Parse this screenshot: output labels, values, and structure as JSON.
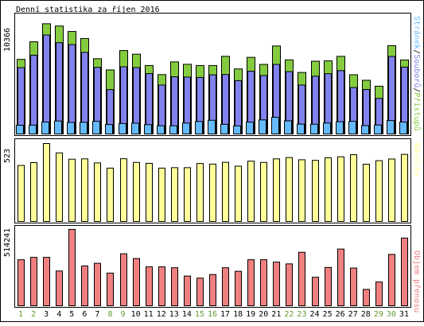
{
  "title": "Denní statistika za říjen 2016",
  "colors": {
    "frame": "#000000",
    "background": "#ffffff",
    "green": "#84cc3f",
    "blue": "#8282ee",
    "lightblue": "#66bbff",
    "yellow": "#ffff99",
    "red": "#f08080",
    "day_weekday": "#000000",
    "day_weekend": "#669933"
  },
  "chart_data": [
    {
      "type": "bar",
      "title": "Denní statistika za říjen 2016",
      "ylabel_max": "10366",
      "legend_right": [
        "Stránek",
        "/",
        "Souborů",
        "/",
        "Přístupů"
      ],
      "ylim": [
        0,
        10366
      ],
      "series": [
        {
          "name": "Přístupů",
          "color": "green",
          "values": [
            6570,
            8120,
            9710,
            9510,
            9030,
            8410,
            6630,
            5640,
            7350,
            7030,
            6030,
            5230,
            6350,
            6140,
            6030,
            6030,
            6840,
            5730,
            6750,
            6130,
            7750,
            6530,
            5420,
            6410,
            6440,
            6840,
            5220,
            4730,
            4210,
            7780,
            6520
          ]
        },
        {
          "name": "Souborů",
          "color": "blue",
          "values": [
            5840,
            6940,
            8720,
            8040,
            7870,
            7190,
            5870,
            3910,
            5920,
            5850,
            5320,
            4310,
            5040,
            5010,
            4980,
            5210,
            5240,
            4700,
            5530,
            5150,
            6130,
            5490,
            4310,
            5090,
            5310,
            5580,
            4090,
            3920,
            3130,
            6830,
            5890
          ]
        },
        {
          "name": "Stránek",
          "color": "lightblue",
          "values": [
            770,
            780,
            1050,
            1140,
            1020,
            1030,
            1110,
            830,
            920,
            950,
            820,
            720,
            720,
            960,
            1100,
            1210,
            850,
            710,
            1040,
            1240,
            1470,
            1160,
            870,
            860,
            960,
            1080,
            1110,
            740,
            790,
            1180,
            1050
          ]
        }
      ]
    },
    {
      "type": "bar",
      "ylabel_max": "523",
      "legend_right": "Návštěv",
      "ylim": [
        0,
        523
      ],
      "series": [
        {
          "name": "Návštěv",
          "color": "yellow",
          "values": [
            376,
            395,
            523,
            460,
            418,
            420,
            393,
            358,
            421,
            396,
            390,
            358,
            361,
            361,
            389,
            385,
            397,
            371,
            405,
            396,
            420,
            429,
            414,
            410,
            427,
            434,
            448,
            384,
            408,
            419,
            450
          ]
        }
      ]
    },
    {
      "type": "bar",
      "ylabel_max": "514241",
      "legend_right": "Objem přenosu",
      "ylim": [
        0,
        514241
      ],
      "series": [
        {
          "name": "Objem přenosu",
          "color": "red",
          "values": [
            310000,
            326000,
            326000,
            234000,
            514241,
            268000,
            286000,
            220000,
            350000,
            318000,
            262000,
            262000,
            256000,
            200000,
            186000,
            210000,
            256000,
            232000,
            310000,
            310000,
            294000,
            282000,
            360000,
            192000,
            258000,
            382000,
            254000,
            110000,
            160000,
            346000,
            456000
          ]
        }
      ]
    }
  ],
  "days": [
    {
      "label": "1",
      "weekend": true
    },
    {
      "label": "2",
      "weekend": true
    },
    {
      "label": "3",
      "weekend": false
    },
    {
      "label": "4",
      "weekend": false
    },
    {
      "label": "5",
      "weekend": false
    },
    {
      "label": "6",
      "weekend": false
    },
    {
      "label": "7",
      "weekend": false
    },
    {
      "label": "8",
      "weekend": true
    },
    {
      "label": "9",
      "weekend": true
    },
    {
      "label": "10",
      "weekend": false
    },
    {
      "label": "11",
      "weekend": false
    },
    {
      "label": "12",
      "weekend": false
    },
    {
      "label": "13",
      "weekend": false
    },
    {
      "label": "14",
      "weekend": false
    },
    {
      "label": "15",
      "weekend": true
    },
    {
      "label": "16",
      "weekend": true
    },
    {
      "label": "17",
      "weekend": false
    },
    {
      "label": "18",
      "weekend": false
    },
    {
      "label": "19",
      "weekend": false
    },
    {
      "label": "20",
      "weekend": false
    },
    {
      "label": "21",
      "weekend": false
    },
    {
      "label": "22",
      "weekend": true
    },
    {
      "label": "23",
      "weekend": true
    },
    {
      "label": "24",
      "weekend": false
    },
    {
      "label": "25",
      "weekend": false
    },
    {
      "label": "26",
      "weekend": false
    },
    {
      "label": "27",
      "weekend": false
    },
    {
      "label": "28",
      "weekend": false
    },
    {
      "label": "29",
      "weekend": true
    },
    {
      "label": "30",
      "weekend": true
    },
    {
      "label": "31",
      "weekend": false
    }
  ]
}
